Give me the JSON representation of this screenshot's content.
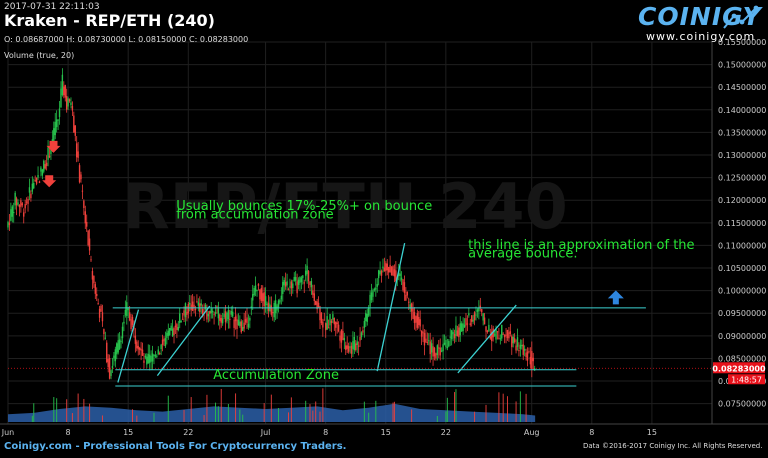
{
  "header": {
    "timestamp": "2017-07-31 22:11:03",
    "title": "Kraken - REP/ETH (240)",
    "ohlc": "O: 0.08687000 H: 0.08730000 L: 0.08150000 C: 0.08283000",
    "volume_label": "Volume (true, 20)"
  },
  "branding": {
    "logo": "COINIGY",
    "url": "www.coinigy.com",
    "watermark": "REP/ETH 240",
    "footer_left": "Coinigy.com - Professional Tools For Cryptocurrency Traders.",
    "footer_right": "Data ©2016-2017 Coinigy Inc. All Rights Reserved."
  },
  "colors": {
    "up": "#27c24c",
    "down": "#f0413c",
    "annotation": "#27e635",
    "trendline": "#3cd2d2",
    "arrow": "#2e86de",
    "volume": "#2b5fa8",
    "price_tag": "#e8121b",
    "grid": "#1f1f1f"
  },
  "chart_data": {
    "type": "candlestick",
    "title": "Kraken - REP/ETH (240)",
    "ylim": [
      0.0705,
      0.155
    ],
    "y_ticks": [
      "0.07500000",
      "0.08000000",
      "0.08500000",
      "0.09000000",
      "0.09500000",
      "0.10000000",
      "0.10500000",
      "0.11000000",
      "0.11500000",
      "0.12000000",
      "0.12500000",
      "0.13000000",
      "0.13500000",
      "0.14000000",
      "0.14500000",
      "0.15000000",
      "0.15500000"
    ],
    "x_ticks": [
      {
        "label": "Jun",
        "day": 0
      },
      {
        "label": "8",
        "day": 7
      },
      {
        "label": "15",
        "day": 14
      },
      {
        "label": "22",
        "day": 21
      },
      {
        "label": "Jul",
        "day": 30
      },
      {
        "label": "8",
        "day": 37
      },
      {
        "label": "15",
        "day": 44
      },
      {
        "label": "22",
        "day": 51
      },
      {
        "label": "Aug",
        "day": 61
      },
      {
        "label": "8",
        "day": 68
      },
      {
        "label": "15",
        "day": 75
      }
    ],
    "last_price": "0.08283000",
    "countdown": "1:48:57",
    "price_path": [
      [
        0,
        0.114
      ],
      [
        1,
        0.12
      ],
      [
        2,
        0.118
      ],
      [
        3,
        0.123
      ],
      [
        4,
        0.126
      ],
      [
        5,
        0.131
      ],
      [
        6,
        0.138
      ],
      [
        6.5,
        0.146
      ],
      [
        7,
        0.141
      ],
      [
        7.5,
        0.142
      ],
      [
        8,
        0.133
      ],
      [
        9,
        0.118
      ],
      [
        10,
        0.103
      ],
      [
        11,
        0.094
      ],
      [
        12,
        0.082
      ],
      [
        13,
        0.088
      ],
      [
        14,
        0.096
      ],
      [
        15,
        0.09
      ],
      [
        16,
        0.084
      ],
      [
        17,
        0.085
      ],
      [
        18,
        0.088
      ],
      [
        19,
        0.09
      ],
      [
        20,
        0.093
      ],
      [
        21,
        0.096
      ],
      [
        22,
        0.097
      ],
      [
        23,
        0.095
      ],
      [
        24,
        0.096
      ],
      [
        25,
        0.094
      ],
      [
        26,
        0.095
      ],
      [
        27,
        0.092
      ],
      [
        28,
        0.093
      ],
      [
        29,
        0.101
      ],
      [
        30,
        0.098
      ],
      [
        31,
        0.095
      ],
      [
        32,
        0.1
      ],
      [
        33,
        0.102
      ],
      [
        34,
        0.101
      ],
      [
        35,
        0.104
      ],
      [
        36,
        0.098
      ],
      [
        37,
        0.092
      ],
      [
        38,
        0.094
      ],
      [
        39,
        0.09
      ],
      [
        40,
        0.087
      ],
      [
        41,
        0.089
      ],
      [
        42,
        0.095
      ],
      [
        43,
        0.102
      ],
      [
        44,
        0.106
      ],
      [
        45,
        0.104
      ],
      [
        46,
        0.102
      ],
      [
        47,
        0.096
      ],
      [
        48,
        0.093
      ],
      [
        49,
        0.088
      ],
      [
        50,
        0.086
      ],
      [
        51,
        0.088
      ],
      [
        52,
        0.09
      ],
      [
        53,
        0.092
      ],
      [
        54,
        0.094
      ],
      [
        55,
        0.096
      ],
      [
        56,
        0.091
      ],
      [
        57,
        0.09
      ],
      [
        58,
        0.091
      ],
      [
        59,
        0.089
      ],
      [
        60,
        0.087
      ],
      [
        61,
        0.0855
      ],
      [
        61.4,
        0.0828
      ]
    ],
    "volume_profile": [
      [
        0,
        0.3
      ],
      [
        3,
        0.35
      ],
      [
        6,
        0.5
      ],
      [
        9,
        0.6
      ],
      [
        12,
        0.55
      ],
      [
        15,
        0.45
      ],
      [
        18,
        0.4
      ],
      [
        21,
        0.5
      ],
      [
        24,
        0.6
      ],
      [
        27,
        0.55
      ],
      [
        30,
        0.5
      ],
      [
        33,
        0.55
      ],
      [
        36,
        0.6
      ],
      [
        39,
        0.45
      ],
      [
        42,
        0.55
      ],
      [
        45,
        0.7
      ],
      [
        48,
        0.5
      ],
      [
        51,
        0.45
      ],
      [
        54,
        0.4
      ],
      [
        57,
        0.35
      ],
      [
        60,
        0.3
      ],
      [
        61.4,
        0.25
      ]
    ],
    "annotations": [
      {
        "text": "Usually bounces 17%-25%+ on bounce",
        "day": 19.6,
        "price": 0.1178
      },
      {
        "text": "from accumulation zone",
        "day": 19.6,
        "price": 0.116
      },
      {
        "text": "this line is an approximation of the",
        "day": 53.6,
        "price": 0.1092
      },
      {
        "text": "average bounce.",
        "day": 53.6,
        "price": 0.1073
      },
      {
        "text": "Accumulation Zone",
        "day": 23.9,
        "price": 0.0804
      }
    ],
    "levels": [
      {
        "name": "bounce-line",
        "price": 0.0962,
        "from_day": 12.2,
        "to_day": 74.3
      },
      {
        "name": "accumulation-top",
        "price": 0.0825,
        "from_day": 12.5,
        "to_day": 66.2
      },
      {
        "name": "accumulation-bottom",
        "price": 0.0789,
        "from_day": 12.5,
        "to_day": 66.2
      }
    ],
    "trend_segments": [
      [
        [
          12.8,
          0.0797
        ],
        [
          15.2,
          0.0958
        ]
      ],
      [
        [
          17.4,
          0.0812
        ],
        [
          23.5,
          0.0966
        ]
      ],
      [
        [
          43.0,
          0.0822
        ],
        [
          46.2,
          0.1105
        ]
      ],
      [
        [
          52.4,
          0.0818
        ],
        [
          59.2,
          0.0968
        ]
      ]
    ],
    "up_arrow": {
      "day": 70.8,
      "price": 0.0985
    },
    "sell_markers": [
      {
        "day": 5.3,
        "price": 0.1318
      },
      {
        "day": 4.8,
        "price": 0.1242
      }
    ]
  }
}
